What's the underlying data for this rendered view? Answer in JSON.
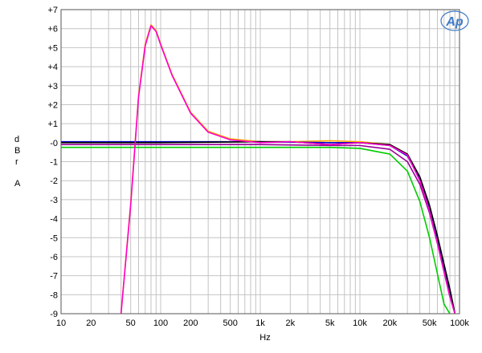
{
  "chart_data": {
    "type": "line",
    "title": "",
    "xlabel": "Hz",
    "ylabel_lines": [
      "d",
      "B",
      "r",
      "A"
    ],
    "x_scale": "log",
    "xlim": [
      10,
      100000
    ],
    "ylim": [
      -9,
      7
    ],
    "grid": true,
    "logo_text": "Ap",
    "x_ticks": [
      {
        "v": 10,
        "label": "10"
      },
      {
        "v": 20,
        "label": "20"
      },
      {
        "v": 50,
        "label": "50"
      },
      {
        "v": 100,
        "label": "100"
      },
      {
        "v": 200,
        "label": "200"
      },
      {
        "v": 500,
        "label": "500"
      },
      {
        "v": 1000,
        "label": "1k"
      },
      {
        "v": 2000,
        "label": "2k"
      },
      {
        "v": 5000,
        "label": "5k"
      },
      {
        "v": 10000,
        "label": "10k"
      },
      {
        "v": 20000,
        "label": "20k"
      },
      {
        "v": 50000,
        "label": "50k"
      },
      {
        "v": 100000,
        "label": "100k"
      }
    ],
    "y_ticks": [
      {
        "v": 7,
        "label": "+7"
      },
      {
        "v": 6,
        "label": "+6"
      },
      {
        "v": 5,
        "label": "+5"
      },
      {
        "v": 4,
        "label": "+4"
      },
      {
        "v": 3,
        "label": "+3"
      },
      {
        "v": 2,
        "label": "+2"
      },
      {
        "v": 1,
        "label": "+1"
      },
      {
        "v": 0,
        "label": "-0"
      },
      {
        "v": -1,
        "label": "-1"
      },
      {
        "v": -2,
        "label": "-2"
      },
      {
        "v": -3,
        "label": "-3"
      },
      {
        "v": -4,
        "label": "-4"
      },
      {
        "v": -5,
        "label": "-5"
      },
      {
        "v": -6,
        "label": "-6"
      },
      {
        "v": -7,
        "label": "-7"
      },
      {
        "v": -8,
        "label": "-8"
      },
      {
        "v": -9,
        "label": "-9"
      }
    ],
    "series": [
      {
        "color": "#ffaa00",
        "x": [
          40,
          50,
          60,
          70,
          80,
          90,
          100,
          130,
          200,
          300,
          500,
          1000,
          2000,
          5000,
          10000,
          20000,
          30000,
          40000,
          50000,
          60000,
          70000,
          80000,
          90000
        ],
        "y": [
          -9,
          -3.2,
          2.5,
          5.2,
          6.2,
          5.9,
          5.2,
          3.6,
          1.6,
          0.6,
          0.2,
          0.05,
          0.05,
          0.1,
          0.05,
          -0.1,
          -0.6,
          -1.9,
          -3.5,
          -5.2,
          -6.7,
          -8.0,
          -9
        ]
      },
      {
        "color": "#00cc00",
        "x": [
          10,
          50,
          100,
          1000,
          5000,
          10000,
          20000,
          30000,
          40000,
          50000,
          60000,
          70000,
          80000
        ],
        "y": [
          -0.25,
          -0.25,
          -0.25,
          -0.25,
          -0.25,
          -0.3,
          -0.6,
          -1.5,
          -3.1,
          -5.0,
          -6.9,
          -8.5,
          -9
        ]
      },
      {
        "color": "#0000cc",
        "x": [
          10,
          50,
          100,
          1000,
          5000,
          10000,
          20000,
          30000,
          40000,
          50000,
          60000,
          70000,
          80000,
          90000
        ],
        "y": [
          0.05,
          0.05,
          0.05,
          0.05,
          0.0,
          0.0,
          -0.15,
          -0.7,
          -1.9,
          -3.4,
          -5.0,
          -6.5,
          -7.8,
          -9
        ]
      },
      {
        "color": "#990099",
        "x": [
          10,
          50,
          100,
          1000,
          5000,
          10000,
          20000,
          30000,
          40000,
          50000,
          60000,
          70000,
          80000,
          90000
        ],
        "y": [
          -0.1,
          -0.1,
          -0.1,
          -0.1,
          -0.15,
          -0.15,
          -0.35,
          -1.0,
          -2.2,
          -3.7,
          -5.3,
          -6.8,
          -8.1,
          -9
        ]
      },
      {
        "color": "#000000",
        "x": [
          10,
          50,
          100,
          1000,
          2000,
          5000,
          10000,
          20000,
          30000,
          40000,
          50000,
          60000,
          70000,
          80000,
          90000
        ],
        "y": [
          0.0,
          0.0,
          0.0,
          0.05,
          0.05,
          -0.1,
          0.0,
          -0.1,
          -0.6,
          -1.8,
          -3.3,
          -4.9,
          -6.4,
          -7.7,
          -9
        ]
      },
      {
        "color": "#ff00cc",
        "x": [
          40,
          50,
          60,
          70,
          80,
          90,
          100,
          130,
          200,
          300,
          500,
          1000,
          2000,
          5000,
          10000,
          20000,
          30000,
          40000,
          50000,
          60000,
          70000,
          80000,
          90000
        ],
        "y": [
          -9,
          -3.3,
          2.4,
          5.1,
          6.15,
          5.85,
          5.15,
          3.55,
          1.55,
          0.55,
          0.15,
          0.0,
          0.05,
          -0.1,
          0.0,
          -0.15,
          -0.65,
          -2.0,
          -3.6,
          -5.3,
          -6.8,
          -8.1,
          -9
        ]
      }
    ]
  }
}
